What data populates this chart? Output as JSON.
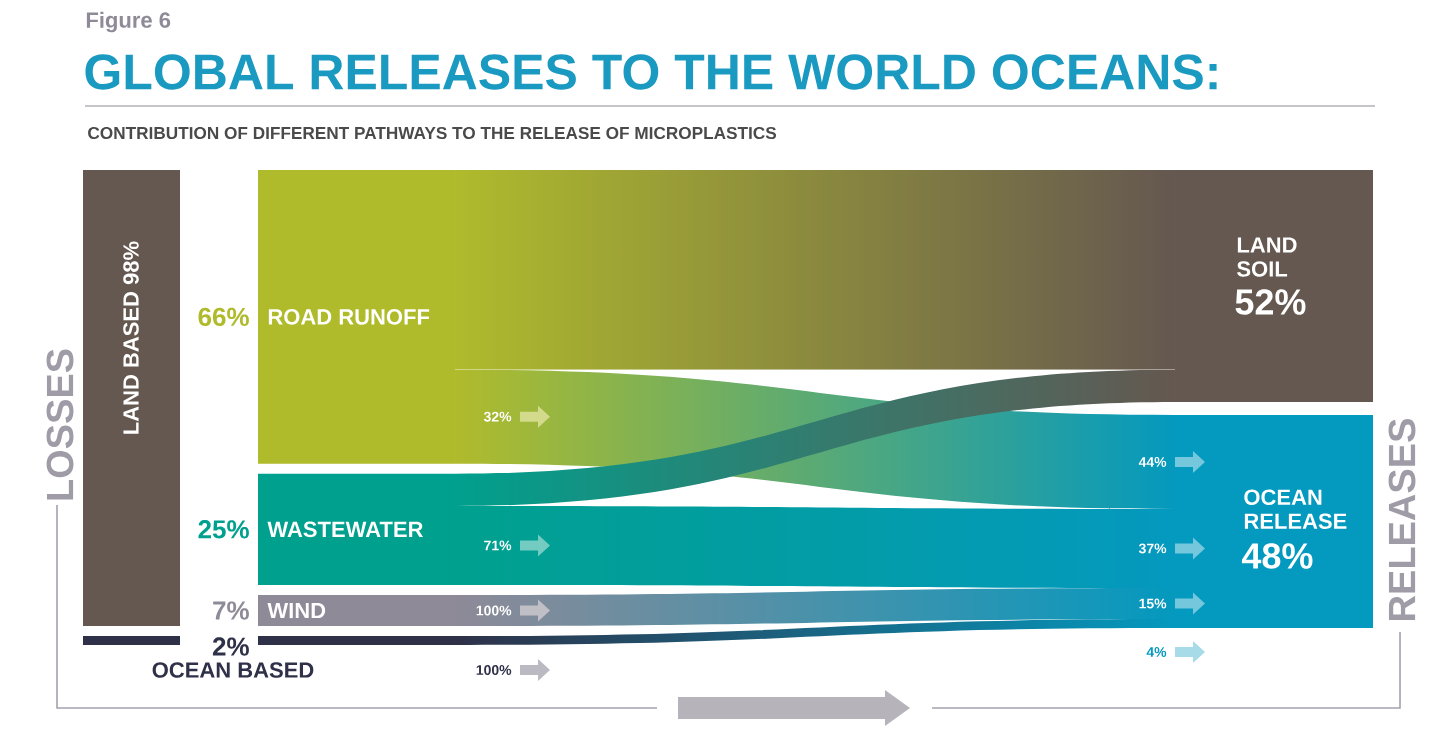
{
  "chart_data": {
    "type": "other",
    "title": "GLOBAL RELEASES TO THE WORLD OCEANS:",
    "subtitle": "CONTRIBUTION OF DIFFERENT PATHWAYS TO THE RELEASE OF MICROPLASTICS",
    "categories": [
      "ROAD RUNOFF",
      "WASTEWATER",
      "WIND",
      "OCEAN BASED"
    ],
    "values": [
      66,
      25,
      7,
      2
    ],
    "value_labels": [
      "66%",
      "25%",
      "7%",
      "2%"
    ],
    "colors": [
      "#b0bb2c",
      "#00a08e",
      "#8e8a97",
      "#2f3148"
    ],
    "series": [
      {
        "name": "OCEAN RELEASE",
        "color": "#0499be",
        "values": [
          32,
          71,
          100,
          100
        ],
        "value_labels": [
          "32%",
          "71%",
          "100%",
          "100%"
        ]
      }
    ],
    "annotations": [
      "Figure 6",
      "LOSSES",
      "RELEASES",
      "LAND BASED 98%",
      "52%",
      "48%",
      "44%",
      "37%",
      "15%",
      "4%",
      "LAND SOIL"
    ],
    "color": "#655850"
  }
}
